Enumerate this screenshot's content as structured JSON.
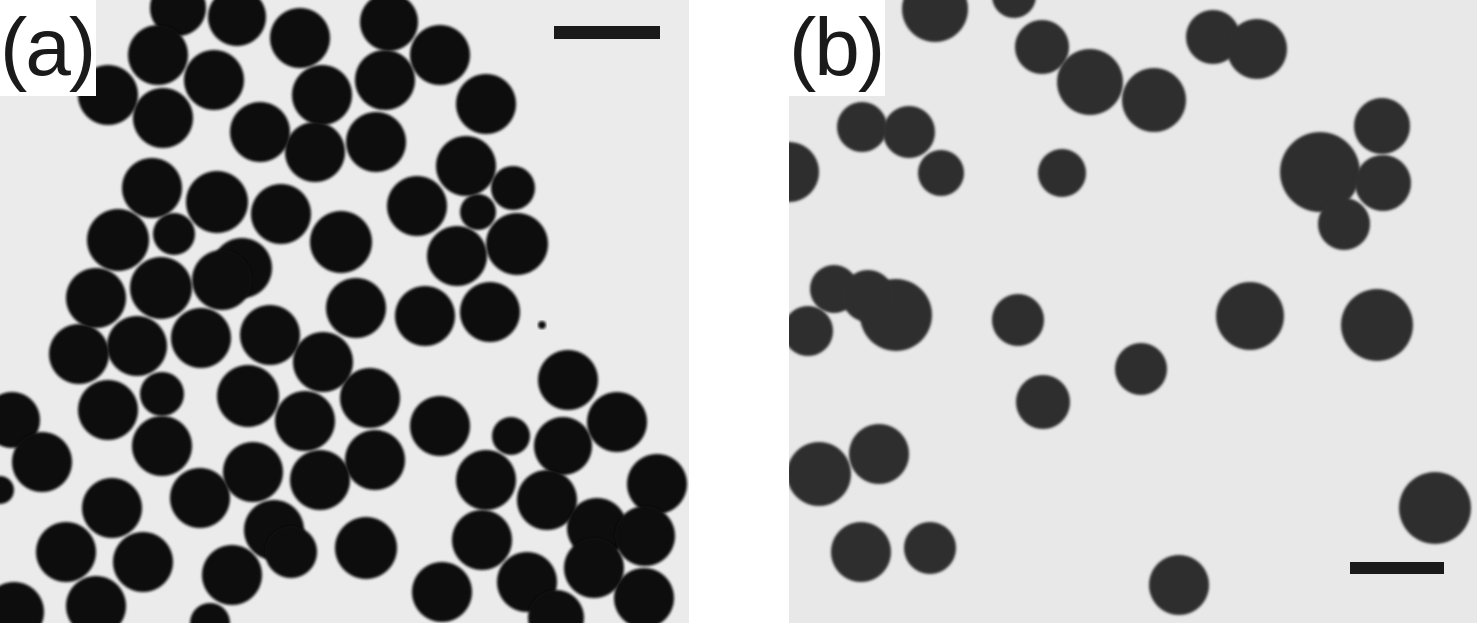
{
  "figure": {
    "panels": [
      {
        "label": "(a)",
        "background": "#ebebeb",
        "particle_color": "#0d0d0d",
        "description_icon": "tem-micrograph-dense-particles"
      },
      {
        "label": "(b)",
        "background": "#e8e8e8",
        "particle_color": "#2e2e2e",
        "description_icon": "tem-micrograph-sparse-particles"
      }
    ]
  }
}
